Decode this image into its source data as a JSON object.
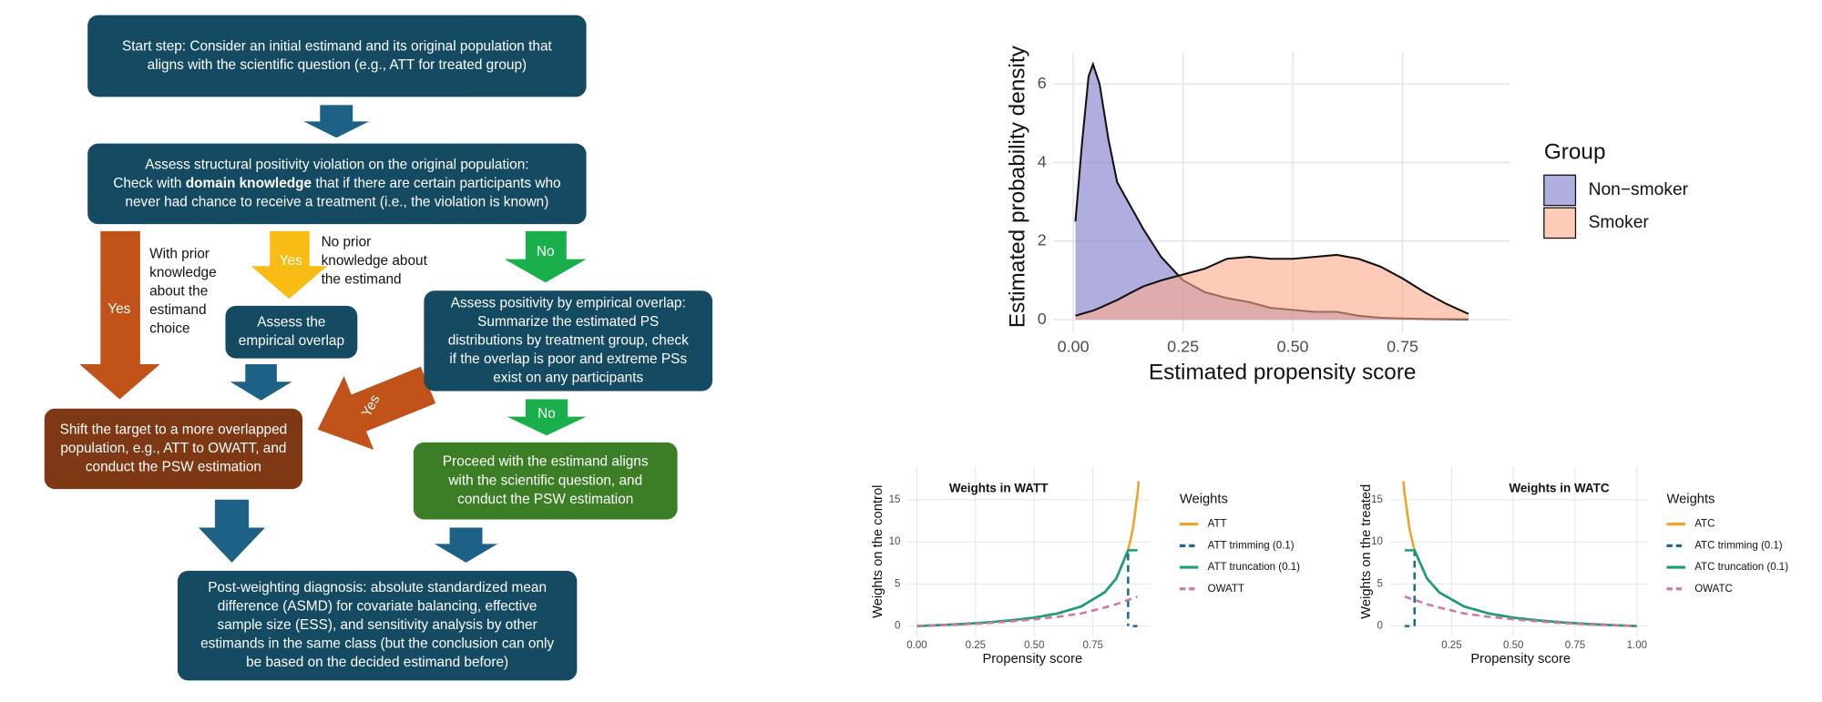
{
  "flowchart": {
    "nodes": [
      {
        "lines": [
          "Start step: Consider an initial estimand and its original population that",
          "aligns with the scientific question (e.g., ATT for treated group)"
        ]
      },
      {
        "lines": [
          "Assess structural positivity violation on the original population:",
          [
            "Check with ",
            "domain knowledge",
            " that if there are certain participants who"
          ],
          "never had chance to receive a treatment (i.e., the violation is known)"
        ]
      },
      {
        "lines": [
          "Assess the",
          "empirical overlap"
        ]
      },
      {
        "lines": [
          "Assess positivity by empirical overlap:",
          "Summarize the estimated PS",
          "distributions by treatment group, check",
          "if the overlap is poor and extreme PSs",
          "exist on any participants"
        ]
      },
      {
        "lines": [
          "Shift the target to a more overlapped",
          "population, e.g., ATT to OWATT, and",
          "conduct the PSW estimation"
        ]
      },
      {
        "lines": [
          "Proceed with the estimand aligns",
          "with the scientific question, and",
          "conduct the PSW estimation"
        ]
      },
      {
        "lines": [
          "Post-weighting diagnosis: absolute standardized mean",
          "difference (ASMD) for covariate balancing, effective",
          "sample size (ESS), and sensitivity analysis by other",
          "estimands in the same class (but the conclusion can only",
          "be based on the decided estimand before)"
        ]
      }
    ],
    "edges": [
      {
        "label": "Yes",
        "note": [
          "With prior",
          "knowledge",
          "about the",
          "estimand",
          "choice"
        ]
      },
      {
        "label": "Yes",
        "note": [
          "No prior",
          "knowledge about",
          "the estimand"
        ]
      },
      {
        "label": "No"
      },
      {
        "label": "Yes"
      },
      {
        "label": "No"
      }
    ]
  },
  "chart_data": [
    {
      "type": "area",
      "x_label": "Estimated propensity score",
      "y_label": "Estimated probability density",
      "legend_title": "Group",
      "x": [
        0.005,
        0.02,
        0.035,
        0.045,
        0.06,
        0.08,
        0.1,
        0.13,
        0.16,
        0.2,
        0.25,
        0.3,
        0.35,
        0.4,
        0.45,
        0.5,
        0.55,
        0.6,
        0.65,
        0.7,
        0.75,
        0.8,
        0.85,
        0.9
      ],
      "series": [
        {
          "name": "Non−smoker",
          "color": "#7b78c9",
          "values": [
            2.5,
            4.5,
            6.2,
            6.5,
            6.0,
            4.6,
            3.5,
            2.9,
            2.3,
            1.6,
            1.0,
            0.7,
            0.55,
            0.45,
            0.3,
            0.25,
            0.2,
            0.2,
            0.1,
            0.05,
            0.03,
            0.02,
            0.015,
            0.01
          ]
        },
        {
          "name": "Smoker",
          "color": "#ffa98a",
          "values": [
            0.1,
            0.15,
            0.2,
            0.23,
            0.3,
            0.4,
            0.5,
            0.68,
            0.85,
            1.0,
            1.15,
            1.3,
            1.55,
            1.6,
            1.55,
            1.55,
            1.6,
            1.65,
            1.55,
            1.35,
            1.05,
            0.7,
            0.4,
            0.15
          ]
        }
      ],
      "xlim": [
        -0.045,
        0.995
      ],
      "ylim": [
        -0.33,
        6.8
      ],
      "xticks": [
        {
          "value": 0,
          "label": "0.00"
        },
        0.25,
        {
          "value": 0.5,
          "label": "0.50"
        },
        0.75
      ],
      "yticks": [
        0,
        2,
        4,
        6
      ],
      "grid": true
    },
    {
      "type": "line",
      "title": "Weights in WATT",
      "x_label": "Propensity score",
      "y_label": "Weights on the control",
      "legend_title": "Weights",
      "series": [
        {
          "name": "ATT",
          "color": "#f0a22a",
          "dash": false,
          "x": [
            0,
            0.1,
            0.2,
            0.3,
            0.4,
            0.5,
            0.6,
            0.7,
            0.8,
            0.85,
            0.9,
            0.92,
            0.94,
            0.945
          ],
          "values": [
            0,
            0.11,
            0.25,
            0.43,
            0.67,
            1,
            1.5,
            2.33,
            4,
            5.67,
            9,
            11.5,
            15.67,
            17.2
          ]
        },
        {
          "name": "ATT trimming (0.1)",
          "color": "#1f6a95",
          "dash": true,
          "x": [
            0,
            0.1,
            0.2,
            0.3,
            0.4,
            0.5,
            0.6,
            0.7,
            0.8,
            0.85,
            0.9,
            0.9,
            0.91,
            0.92,
            0.94
          ],
          "values": [
            0,
            0.11,
            0.25,
            0.43,
            0.67,
            1,
            1.5,
            2.33,
            4,
            5.67,
            9,
            0,
            null,
            0,
            0
          ]
        },
        {
          "name": "ATT truncation (0.1)",
          "color": "#1a9e77",
          "dash": false,
          "x": [
            0,
            0.1,
            0.2,
            0.3,
            0.4,
            0.5,
            0.6,
            0.7,
            0.8,
            0.85,
            0.9,
            0.92,
            0.94
          ],
          "values": [
            0,
            0.11,
            0.25,
            0.43,
            0.67,
            1,
            1.5,
            2.33,
            4,
            5.67,
            9,
            9,
            9
          ]
        },
        {
          "name": "OWATT",
          "color": "#cc79a7",
          "dash": true,
          "x": [
            0,
            0.1,
            0.2,
            0.3,
            0.4,
            0.5,
            0.6,
            0.7,
            0.8,
            0.85,
            0.9,
            0.94
          ],
          "values": [
            0,
            0.1,
            0.2,
            0.35,
            0.55,
            0.8,
            1.1,
            1.5,
            2.2,
            2.6,
            3.1,
            3.5
          ]
        }
      ],
      "xlim": [
        -0.04,
        0.995
      ],
      "ylim": [
        -1.2,
        18.9
      ],
      "xticks": [
        {
          "value": 0,
          "label": "0.00"
        },
        0.25,
        {
          "value": 0.5,
          "label": "0.50"
        },
        0.75
      ],
      "yticks": [
        0,
        5,
        10,
        15
      ],
      "grid": true
    },
    {
      "type": "line",
      "title": "Weights in WATC",
      "x_label": "Propensity score",
      "y_label": "Weights on the treated",
      "legend_title": "Weights",
      "series": [
        {
          "name": "ATC",
          "color": "#f0a22a",
          "dash": false,
          "x": [
            0.055,
            0.06,
            0.08,
            0.1,
            0.15,
            0.2,
            0.3,
            0.4,
            0.5,
            0.6,
            0.7,
            0.8,
            0.9,
            1.0
          ],
          "values": [
            17.2,
            15.67,
            11.5,
            9,
            5.67,
            4,
            2.33,
            1.5,
            1,
            0.67,
            0.43,
            0.25,
            0.11,
            0
          ]
        },
        {
          "name": "ATC trimming (0.1)",
          "color": "#1f6a95",
          "dash": true,
          "x": [
            0.06,
            0.08,
            0.09,
            0.1,
            0.1,
            0.15,
            0.2,
            0.3,
            0.4,
            0.5,
            0.6,
            0.7,
            0.8,
            0.9,
            1.0
          ],
          "values": [
            0,
            0,
            null,
            0,
            9,
            5.67,
            4,
            2.33,
            1.5,
            1,
            0.67,
            0.43,
            0.25,
            0.11,
            0
          ]
        },
        {
          "name": "ATC truncation (0.1)",
          "color": "#1a9e77",
          "dash": false,
          "x": [
            0.06,
            0.08,
            0.1,
            0.15,
            0.2,
            0.3,
            0.4,
            0.5,
            0.6,
            0.7,
            0.8,
            0.9,
            1.0
          ],
          "values": [
            9,
            9,
            9,
            5.67,
            4,
            2.33,
            1.5,
            1,
            0.67,
            0.43,
            0.25,
            0.11,
            0
          ]
        },
        {
          "name": "OWATC",
          "color": "#cc79a7",
          "dash": true,
          "x": [
            0.06,
            0.1,
            0.15,
            0.2,
            0.3,
            0.4,
            0.5,
            0.6,
            0.7,
            0.8,
            0.9,
            1.0
          ],
          "values": [
            3.5,
            3.1,
            2.6,
            2.2,
            1.5,
            1.1,
            0.8,
            0.55,
            0.35,
            0.2,
            0.1,
            0
          ]
        }
      ],
      "xlim": [
        -0.0,
        1.04
      ],
      "ylim": [
        -1.2,
        18.9
      ],
      "xticks": [
        0.25,
        {
          "value": 0.5,
          "label": "0.50"
        },
        0.75,
        {
          "value": 1,
          "label": "1.00"
        }
      ],
      "yticks": [
        0,
        5,
        10,
        15
      ],
      "grid": true
    }
  ]
}
